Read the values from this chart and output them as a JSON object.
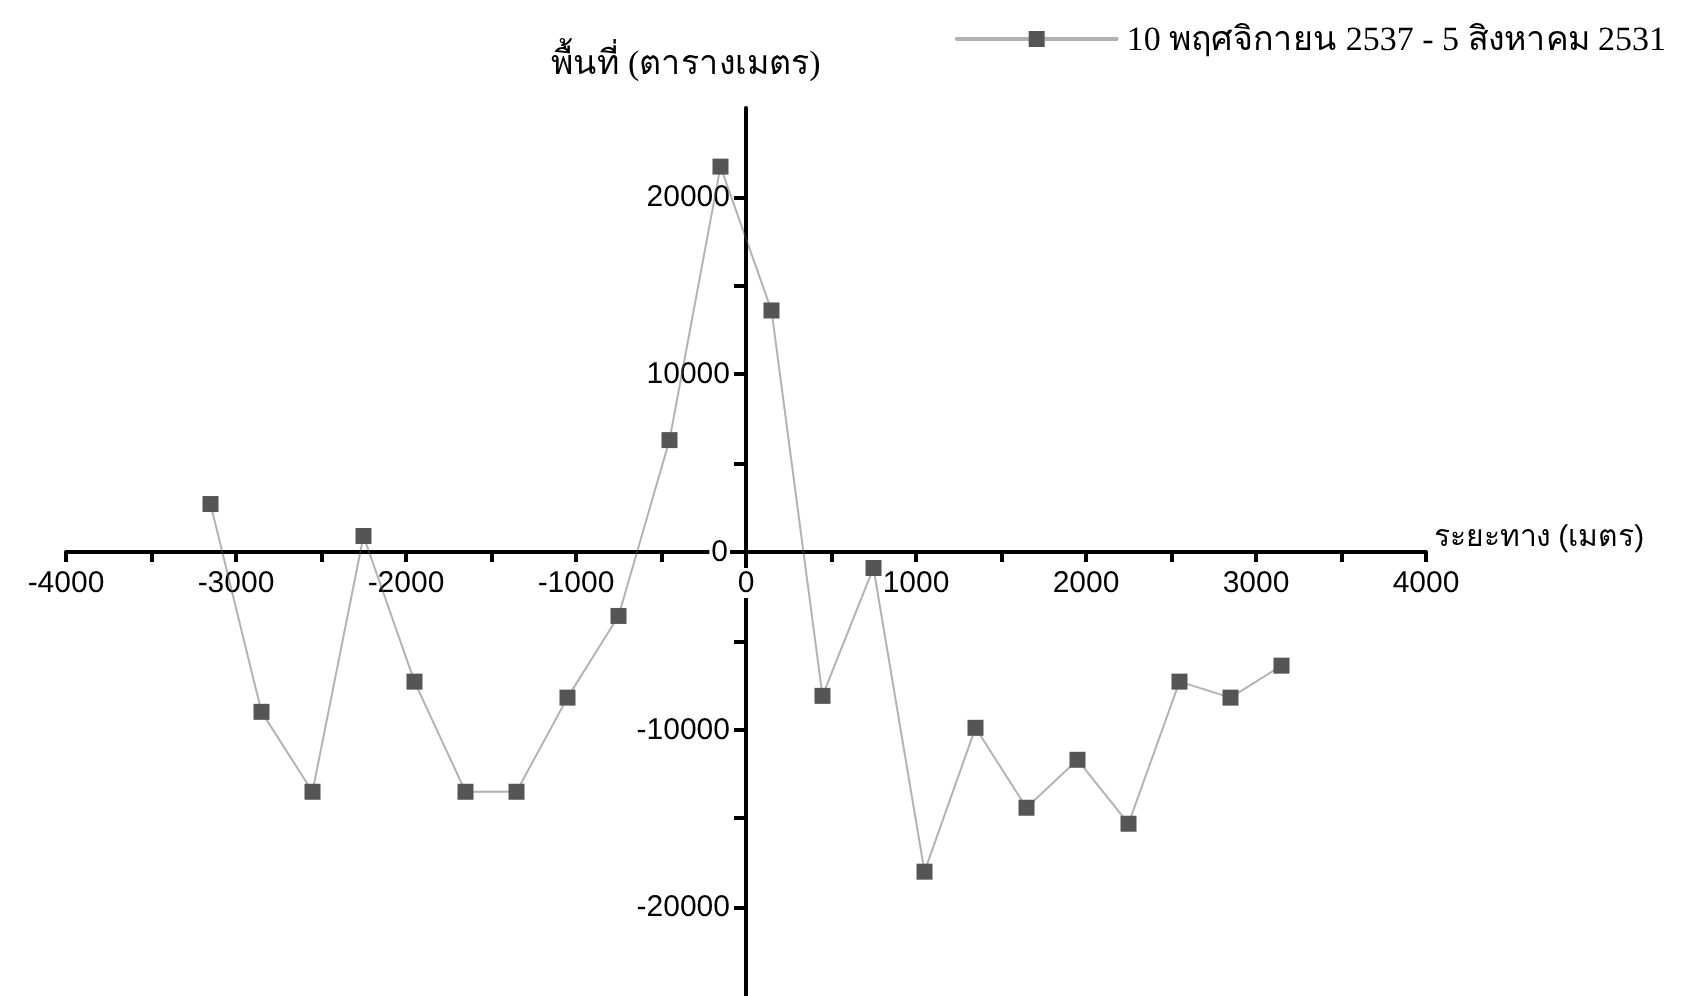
{
  "chart_data": {
    "type": "line",
    "xlabel": "ระยะทาง (เมตร)",
    "ylabel": "พื้นที่ (ตารางเมตร)",
    "x": [
      -3150,
      -2850,
      -2550,
      -2250,
      -1950,
      -1650,
      -1350,
      -1050,
      -750,
      -450,
      -150,
      150,
      450,
      750,
      1050,
      1350,
      1650,
      1950,
      2250,
      2550,
      2850,
      3150
    ],
    "series": [
      {
        "name": "10 พฤศจิกายน 2537 - 5 สิงหาคม 2531",
        "color": "#555555",
        "values": [
          2700,
          -9000,
          -13500,
          900,
          -7300,
          -13500,
          -13500,
          -8200,
          -3600,
          6300,
          21700,
          13600,
          -8100,
          -900,
          -18000,
          -9900,
          -14400,
          -11700,
          -15300,
          -7300,
          -8200,
          -6400
        ]
      }
    ],
    "xlim": [
      -4000,
      4000
    ],
    "xticks": [
      -4000,
      {
        "value": -3500,
        "label": null
      },
      -3000,
      {
        "value": -2500,
        "label": null
      },
      -2000,
      {
        "value": -1500,
        "label": null
      },
      -1000,
      {
        "value": -500,
        "label": null
      },
      0,
      {
        "value": 500,
        "label": null
      },
      1000,
      {
        "value": 1500,
        "label": null
      },
      2000,
      {
        "value": 2500,
        "label": null
      },
      3000,
      {
        "value": 3500,
        "label": null
      },
      4000
    ],
    "ylim": [
      -25000,
      25000
    ],
    "yticks": [
      -20000,
      {
        "value": -15000,
        "label": null
      },
      -10000,
      {
        "value": -5000,
        "label": null
      },
      0,
      {
        "value": 5000,
        "label": null
      },
      10000,
      {
        "value": 15000,
        "label": null
      },
      20000
    ],
    "grid": false,
    "legend": "top right",
    "marker": "square",
    "line_style": "solid"
  }
}
